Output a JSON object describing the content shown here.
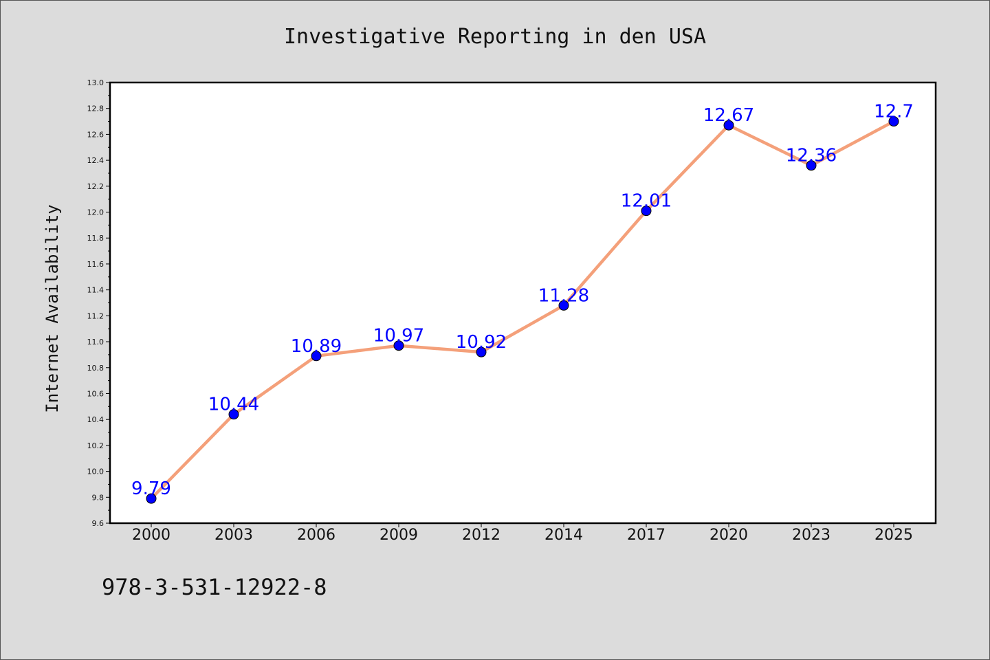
{
  "chart_data": {
    "type": "line",
    "title": "Investigative Reporting in den USA",
    "ylabel": "Internet Availability",
    "xlabel": "",
    "categories": [
      "2000",
      "2003",
      "2006",
      "2009",
      "2012",
      "2014",
      "2017",
      "2020",
      "2023",
      "2025"
    ],
    "values": [
      9.79,
      10.44,
      10.89,
      10.97,
      10.92,
      11.28,
      12.01,
      12.67,
      12.36,
      12.7
    ],
    "value_labels": [
      "9.79",
      "10.44",
      "10.89",
      "10.97",
      "10.92",
      "11.28",
      "12.01",
      "12.67",
      "12.36",
      "12.7"
    ],
    "ylim": [
      9.6,
      13.0
    ],
    "yticks": [
      "9.6",
      "9.8",
      "10.0",
      "10.2",
      "10.4",
      "10.6",
      "10.8",
      "11.0",
      "11.2",
      "11.4",
      "11.6",
      "11.8",
      "12.0",
      "12.2",
      "12.4",
      "12.6",
      "12.8",
      "13.0"
    ],
    "grid": false,
    "legend": "none",
    "line_color": "#f4a07a",
    "marker_color": "#0000ff",
    "label_color": "#0000ff"
  },
  "footer_text": "978-3-531-12922-8"
}
